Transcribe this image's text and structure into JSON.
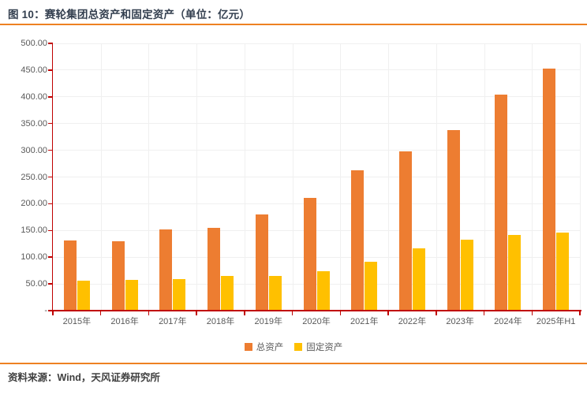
{
  "header": {
    "title": "图 10：赛轮集团总资产和固定资产（单位：亿元）"
  },
  "footer": {
    "source": "资料来源：Wind，天风证券研究所"
  },
  "legend": [
    {
      "label": "总资产",
      "color": "#ED7D31"
    },
    {
      "label": "固定资产",
      "color": "#FFC000"
    }
  ],
  "colors": {
    "bar_orange": "#ED7D31",
    "bar_yellow": "#FFC000",
    "axis_red": "#C00000",
    "rule_orange": "#EE8122",
    "gridline": "#F0F0F0",
    "tick_label": "#595959",
    "title_text": "#333F4F"
  },
  "chart_data": {
    "type": "bar",
    "title": "赛轮集团总资产和固定资产（单位：亿元）",
    "xlabel": "",
    "ylabel": "",
    "categories": [
      "2015年",
      "2016年",
      "2017年",
      "2018年",
      "2019年",
      "2020年",
      "2021年",
      "2022年",
      "2023年",
      "2024年",
      "2025年H1"
    ],
    "series": [
      {
        "name": "总资产",
        "color": "#ED7D31",
        "values": [
          130,
          129,
          150,
          153,
          179,
          210,
          261,
          297,
          337,
          402,
          452
        ]
      },
      {
        "name": "固定资产",
        "color": "#FFC000",
        "values": [
          55,
          56,
          58,
          63,
          64,
          72,
          90,
          115,
          131,
          140,
          145
        ]
      }
    ],
    "ylim": [
      0,
      500
    ],
    "ytick_step": 50,
    "ytick_labels": [
      "-",
      "50.00",
      "100.00",
      "150.00",
      "200.00",
      "250.00",
      "300.00",
      "350.00",
      "400.00",
      "450.00",
      "500.00"
    ],
    "grid": true,
    "legend_position": "bottom"
  }
}
